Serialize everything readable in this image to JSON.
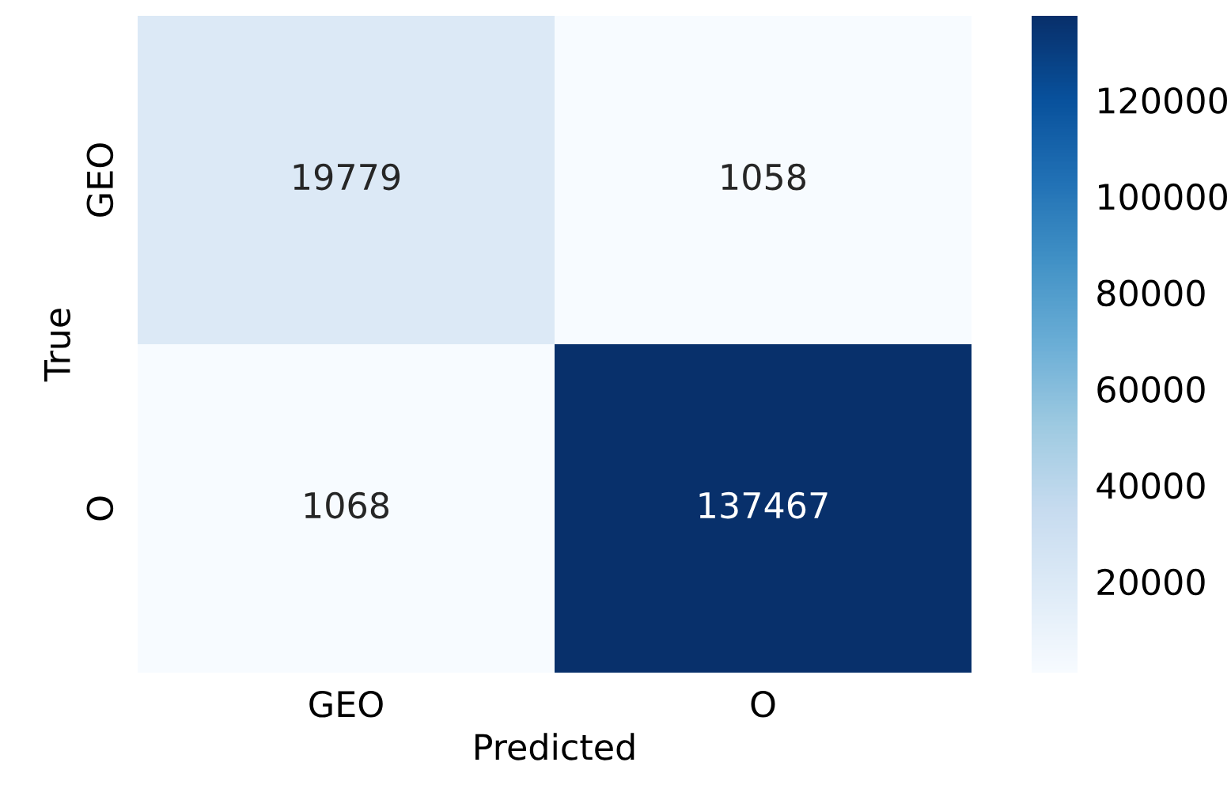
{
  "chart_data": {
    "type": "heatmap",
    "xlabel": "Predicted",
    "ylabel": "True",
    "categories": [
      "GEO",
      "O"
    ],
    "y_categories": [
      "GEO",
      "O"
    ],
    "cells": [
      [
        19779,
        1058
      ],
      [
        1068,
        137467
      ]
    ],
    "clim": [
      1058,
      137467
    ],
    "cticks": [
      20000,
      40000,
      60000,
      80000,
      100000,
      120000
    ],
    "data_labels": true
  }
}
